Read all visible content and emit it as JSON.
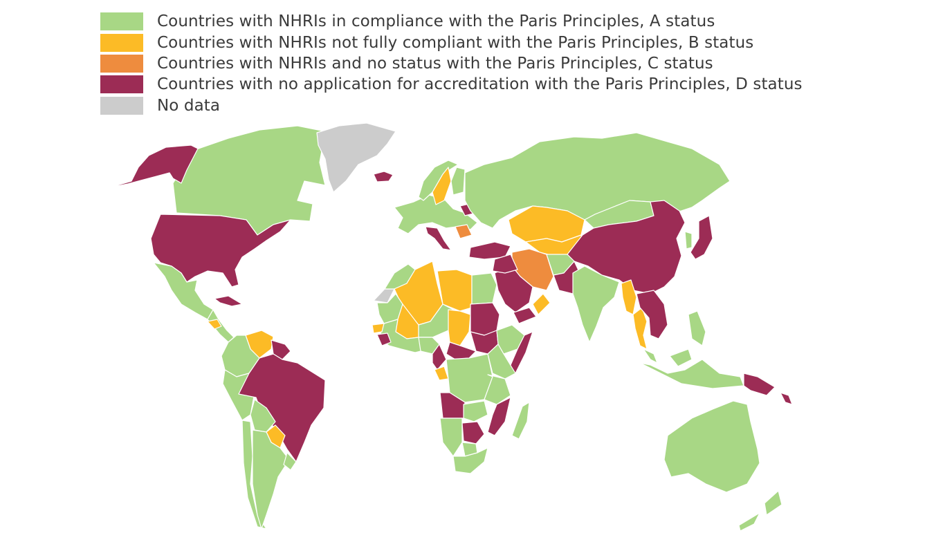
{
  "legend": [
    {
      "key": "A",
      "label": "Countries with NHRIs in compliance with the Paris Principles, A status",
      "color": "#a8d785"
    },
    {
      "key": "B",
      "label": "Countries with NHRIs not fully compliant with the Paris Principles, B status",
      "color": "#fcbb26"
    },
    {
      "key": "C",
      "label": "Countries with NHRIs and no status with the Paris Principles, C status",
      "color": "#ee8c3e"
    },
    {
      "key": "D",
      "label": "Countries with no application for accreditation with the Paris Principles, D status",
      "color": "#9c2c55"
    },
    {
      "key": "none",
      "label": "No data",
      "color": "#cccccc"
    }
  ],
  "regions": [
    {
      "name": "Canada",
      "status": "A"
    },
    {
      "name": "Alaska",
      "status": "D"
    },
    {
      "name": "Greenland",
      "status": "none"
    },
    {
      "name": "Iceland",
      "status": "D"
    },
    {
      "name": "United States",
      "status": "D"
    },
    {
      "name": "Mexico",
      "status": "A"
    },
    {
      "name": "Cuba",
      "status": "D"
    },
    {
      "name": "Central America",
      "status": "A"
    },
    {
      "name": "Honduras",
      "status": "B"
    },
    {
      "name": "Venezuela",
      "status": "B"
    },
    {
      "name": "Guianas",
      "status": "D"
    },
    {
      "name": "Colombia-Ecuador",
      "status": "A"
    },
    {
      "name": "Peru",
      "status": "A"
    },
    {
      "name": "Brazil",
      "status": "D"
    },
    {
      "name": "Bolivia",
      "status": "A"
    },
    {
      "name": "Paraguay",
      "status": "B"
    },
    {
      "name": "Chile",
      "status": "A"
    },
    {
      "name": "Argentina",
      "status": "A"
    },
    {
      "name": "Uruguay",
      "status": "A"
    },
    {
      "name": "Western Sahara",
      "status": "none"
    },
    {
      "name": "Morocco",
      "status": "A"
    },
    {
      "name": "Algeria",
      "status": "B"
    },
    {
      "name": "Libya",
      "status": "B"
    },
    {
      "name": "Egypt",
      "status": "A"
    },
    {
      "name": "Mauritania",
      "status": "A"
    },
    {
      "name": "Mali",
      "status": "B"
    },
    {
      "name": "Niger",
      "status": "A"
    },
    {
      "name": "Chad",
      "status": "B"
    },
    {
      "name": "Sudan",
      "status": "D"
    },
    {
      "name": "South Sudan",
      "status": "D"
    },
    {
      "name": "Ethiopia",
      "status": "A"
    },
    {
      "name": "Somalia",
      "status": "D"
    },
    {
      "name": "West Africa",
      "status": "A"
    },
    {
      "name": "Senegal",
      "status": "B"
    },
    {
      "name": "Guinea-Liberia",
      "status": "D"
    },
    {
      "name": "Nigeria",
      "status": "A"
    },
    {
      "name": "Cameroon",
      "status": "D"
    },
    {
      "name": "Central African Republic",
      "status": "D"
    },
    {
      "name": "Gabon",
      "status": "B"
    },
    {
      "name": "DR Congo",
      "status": "A"
    },
    {
      "name": "Kenya",
      "status": "A"
    },
    {
      "name": "Tanzania",
      "status": "A"
    },
    {
      "name": "Angola",
      "status": "D"
    },
    {
      "name": "Zambia",
      "status": "A"
    },
    {
      "name": "Mozambique",
      "status": "D"
    },
    {
      "name": "Zimbabwe",
      "status": "D"
    },
    {
      "name": "Namibia",
      "status": "A"
    },
    {
      "name": "Botswana",
      "status": "A"
    },
    {
      "name": "South Africa",
      "status": "A"
    },
    {
      "name": "Madagascar",
      "status": "A"
    },
    {
      "name": "Western Europe",
      "status": "A"
    },
    {
      "name": "Norway",
      "status": "A"
    },
    {
      "name": "Sweden",
      "status": "B"
    },
    {
      "name": "Finland",
      "status": "A"
    },
    {
      "name": "Belarus",
      "status": "D"
    },
    {
      "name": "Italy",
      "status": "D"
    },
    {
      "name": "Romania",
      "status": "C"
    },
    {
      "name": "Turkey",
      "status": "D"
    },
    {
      "name": "Russia",
      "status": "A"
    },
    {
      "name": "Kazakhstan",
      "status": "B"
    },
    {
      "name": "Central Asia",
      "status": "B"
    },
    {
      "name": "Mongolia",
      "status": "A"
    },
    {
      "name": "China",
      "status": "D"
    },
    {
      "name": "Japan",
      "status": "D"
    },
    {
      "name": "Korea",
      "status": "A"
    },
    {
      "name": "Iran",
      "status": "C"
    },
    {
      "name": "Afghanistan",
      "status": "A"
    },
    {
      "name": "Pakistan",
      "status": "D"
    },
    {
      "name": "Saudi Arabia",
      "status": "D"
    },
    {
      "name": "Iraq-Syria",
      "status": "D"
    },
    {
      "name": "Yemen",
      "status": "D"
    },
    {
      "name": "Oman",
      "status": "B"
    },
    {
      "name": "India",
      "status": "A"
    },
    {
      "name": "Myanmar",
      "status": "B"
    },
    {
      "name": "Thailand",
      "status": "B"
    },
    {
      "name": "Vietnam-Laos",
      "status": "D"
    },
    {
      "name": "Philippines",
      "status": "A"
    },
    {
      "name": "Malaysia",
      "status": "A"
    },
    {
      "name": "Indonesia",
      "status": "A"
    },
    {
      "name": "Papua New Guinea",
      "status": "D"
    },
    {
      "name": "Solomon Islands",
      "status": "D"
    },
    {
      "name": "Australia",
      "status": "A"
    },
    {
      "name": "New Zealand",
      "status": "A"
    }
  ]
}
